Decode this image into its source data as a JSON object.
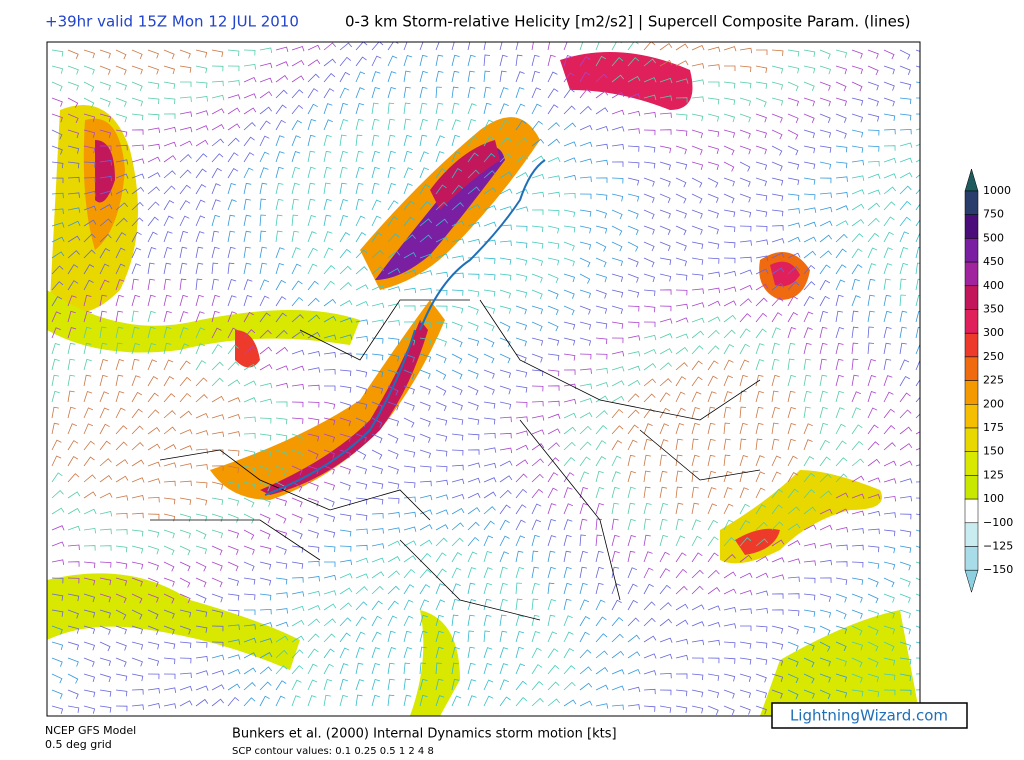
{
  "header": {
    "forecast": "+39hr valid 15Z Mon 12 JUL 2010",
    "title": "0-3 km Storm-relative Helicity [m2/s2] | Supercell Composite Param. (lines)"
  },
  "colorbar": {
    "labels": [
      "1000",
      "750",
      "500",
      "450",
      "400",
      "350",
      "300",
      "250",
      "225",
      "200",
      "175",
      "150",
      "125",
      "100",
      "−100",
      "−125",
      "−150"
    ],
    "colors": [
      "#1f5a5e",
      "#2a3c6b",
      "#4b0d7a",
      "#7a1fa2",
      "#a0249e",
      "#c2185b",
      "#e0205a",
      "#ee3a2a",
      "#f06a10",
      "#f49a00",
      "#f5be00",
      "#e8d800",
      "#d8e800",
      "#c8e800",
      "#ffffff",
      "#c8ecf0",
      "#a8dce8",
      "#8ccfe0"
    ]
  },
  "footer": {
    "model": "NCEP GFS Model",
    "grid": "0.5 deg grid",
    "motion": "Bunkers et al. (2000) Internal Dynamics storm motion [kts]",
    "contours": "SCP contour values: 0.1 0.25 0.5 1 2 4 8"
  },
  "watermark": "LightningWizard.com"
}
